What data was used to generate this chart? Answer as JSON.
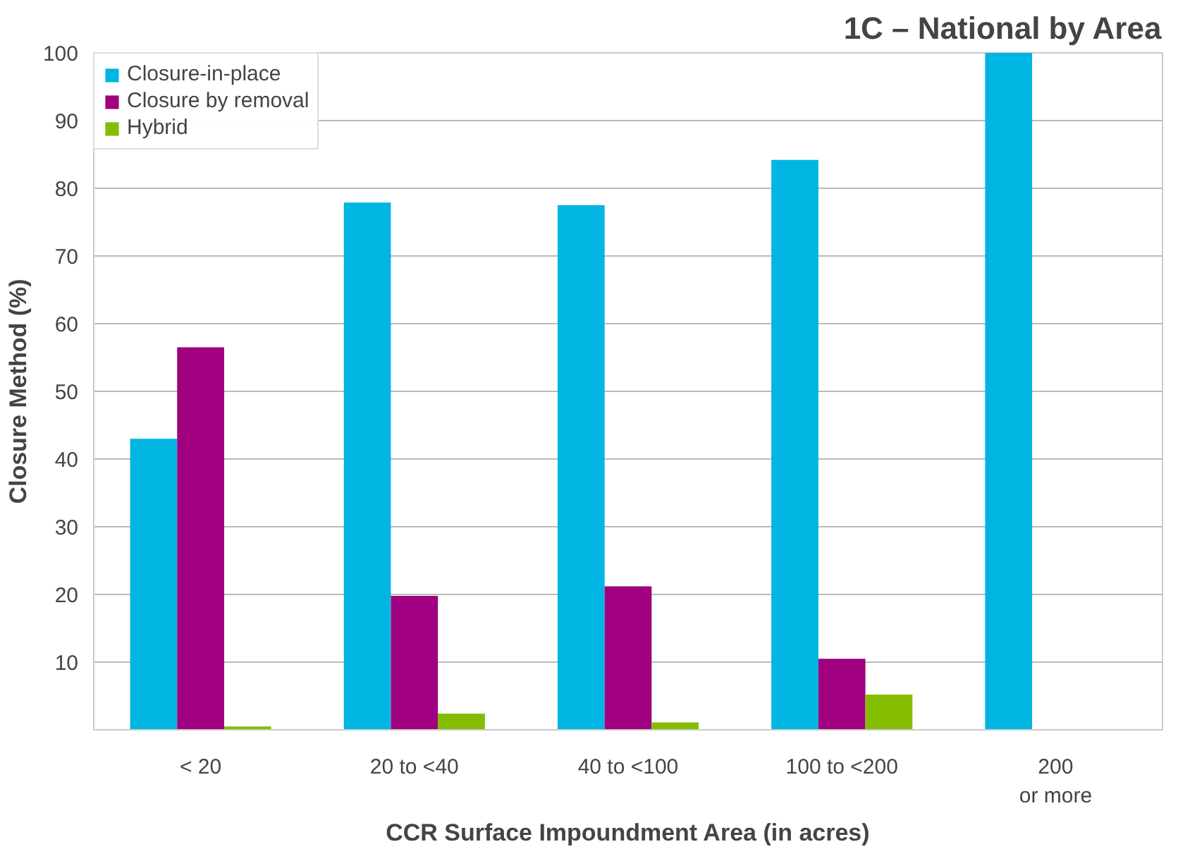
{
  "chart_data": {
    "type": "bar",
    "title": "1C – National by Area",
    "xlabel": "CCR Surface Impoundment Area (in acres)",
    "ylabel": "Closure Method (%)",
    "categories": [
      "< 20",
      "20 to <40",
      "40 to <100",
      "100 to <200",
      "200\nor more"
    ],
    "series": [
      {
        "name": "Closure-in-place",
        "color": "#00b5e2",
        "values": [
          43.0,
          77.9,
          77.5,
          84.2,
          100
        ]
      },
      {
        "name": "Closure by removal",
        "color": "#a0007f",
        "values": [
          56.5,
          19.8,
          21.2,
          10.5,
          0
        ]
      },
      {
        "name": "Hybrid",
        "color": "#84bd00",
        "values": [
          0.5,
          2.4,
          1.1,
          5.2,
          0
        ]
      }
    ],
    "ylim": [
      0,
      100
    ],
    "yticks": [
      10,
      20,
      30,
      40,
      50,
      60,
      70,
      80,
      90,
      100
    ],
    "grid": "y",
    "legend": "top left"
  }
}
